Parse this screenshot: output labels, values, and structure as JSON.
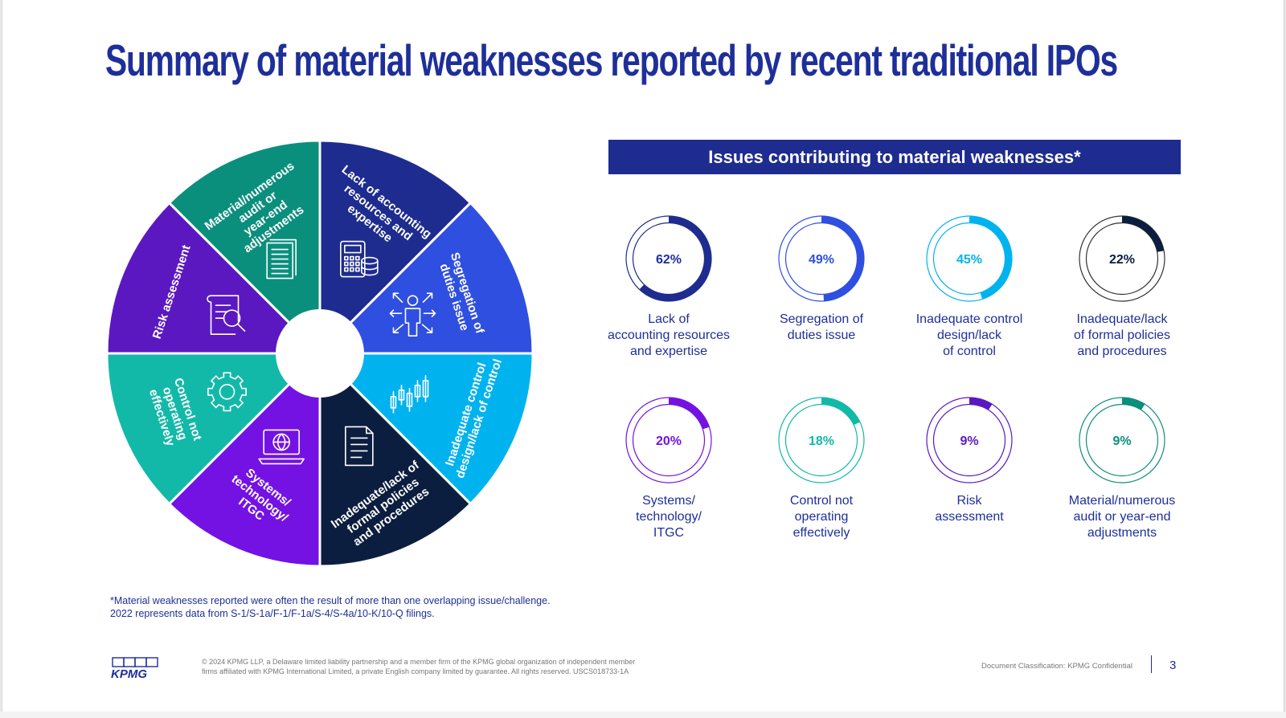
{
  "title": "Summary of material weaknesses reported by recent traditional IPOs",
  "wheel": {
    "center_fill": "#ffffff",
    "segments": [
      {
        "label_lines": [
          "Lack of accounting",
          "resources and",
          "expertise"
        ],
        "color": "#1e2c8f",
        "icon": "calculator-database-icon"
      },
      {
        "label_lines": [
          "Segregation of",
          "duties issue"
        ],
        "color": "#2f4fe0",
        "icon": "person-arrows-icon"
      },
      {
        "label_lines": [
          "Inadequate control",
          "design/lack of control"
        ],
        "color": "#00b3ee",
        "icon": "candlestick-chart-icon"
      },
      {
        "label_lines": [
          "Inadequate/lack of",
          "formal policies",
          "and procedures"
        ],
        "color": "#0c1e3f",
        "icon": "document-icon"
      },
      {
        "label_lines": [
          "Systems/",
          "technology/",
          "ITGC"
        ],
        "color": "#7312e3",
        "icon": "laptop-globe-icon"
      },
      {
        "label_lines": [
          "Control not",
          "operating",
          "effectively"
        ],
        "color": "#13b9a8",
        "icon": "gear-icon"
      },
      {
        "label_lines": [
          "Risk assessment"
        ],
        "color": "#5b18c0",
        "icon": "scroll-magnifier-icon"
      },
      {
        "label_lines": [
          "Material/numerous",
          "audit or",
          "year-end",
          "adjustments"
        ],
        "color": "#0b8f7d",
        "icon": "stacked-pages-icon"
      }
    ]
  },
  "panel": {
    "header": "Issues contributing to material weaknesses*",
    "items": [
      {
        "percent": 62,
        "display": "62%",
        "label": "Lack of\naccounting resources\nand expertise",
        "color": "#1e2c8f",
        "ring": "#1e2c8f",
        "text_color": "#1e2f9a"
      },
      {
        "percent": 49,
        "display": "49%",
        "label": "Segregation of\nduties issue",
        "color": "#2f4fe0",
        "ring": "#2f4fe0",
        "text_color": "#2f4fe0"
      },
      {
        "percent": 45,
        "display": "45%",
        "label": "Inadequate control\ndesign/lack\nof control",
        "color": "#00b3ee",
        "ring": "#00b3ee",
        "text_color": "#00b3ee"
      },
      {
        "percent": 22,
        "display": "22%",
        "label": "Inadequate/lack\nof formal policies\nand procedures",
        "color": "#0c1e3f",
        "ring": "#333333",
        "text_color": "#0c1e3f"
      },
      {
        "percent": 20,
        "display": "20%",
        "label": "Systems/\ntechnology/\nITGC",
        "color": "#7312e3",
        "ring": "#7312e3",
        "text_color": "#7312e3"
      },
      {
        "percent": 18,
        "display": "18%",
        "label": "Control not\noperating\neffectively",
        "color": "#13b9a8",
        "ring": "#13b9a8",
        "text_color": "#13b9a8"
      },
      {
        "percent": 9,
        "display": "9%",
        "label": "Risk\nassessment",
        "color": "#5b18c0",
        "ring": "#5b18c0",
        "text_color": "#5b18c0"
      },
      {
        "percent": 9,
        "display": "9%",
        "label": "Material/numerous\naudit or year-end\nadjustments",
        "color": "#0b8f7d",
        "ring": "#0b8f7d",
        "text_color": "#0b8f7d"
      }
    ]
  },
  "footnotes": {
    "line1": "*Material weaknesses reported were often the result of more than one overlapping issue/challenge.",
    "line2": "2022 represents data from S-1/S-1a/F-1/F-1a/S-4/S-4a/10-K/10-Q filings."
  },
  "footer": {
    "logo_text": "KPMG",
    "legal_line1": "© 2024 KPMG LLP, a Delaware limited liability partnership and a member firm of the KPMG global organization of independent member",
    "legal_line2": "firms affiliated with KPMG International Limited, a private English company limited by guarantee. All rights reserved. USCS018733-1A",
    "classification": "Document Classification: KPMG Confidential",
    "page_number": "3"
  },
  "colors": {
    "brand_blue": "#1e2f9a",
    "header_blue": "#1e2c8f"
  }
}
